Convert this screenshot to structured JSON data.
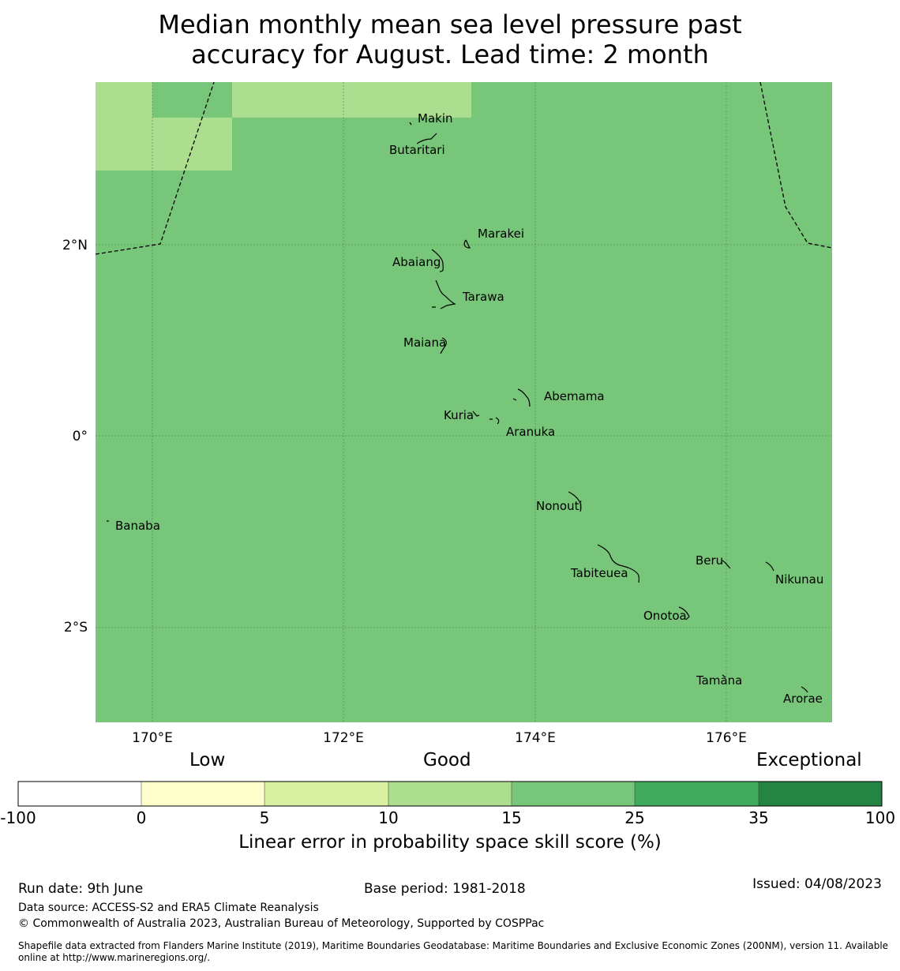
{
  "title": {
    "line1": "Median monthly mean sea level pressure past",
    "line2": "accuracy for August. Lead time: 2 month"
  },
  "map": {
    "lat_labels": [
      "2°N",
      "0°",
      "2°S"
    ],
    "lon_labels": [
      "170°E",
      "172°E",
      "174°E",
      "176°E"
    ],
    "islands": [
      "Makin",
      "Butaritari",
      "Marakei",
      "Abaiang",
      "Tarawa",
      "Maiana",
      "Abemama",
      "Kuria",
      "Aranuka",
      "Nonouti",
      "Banaba",
      "Tabiteuea",
      "Beru",
      "Nikunau",
      "Onotoa",
      "Tamana",
      "Arorae"
    ],
    "colors": {
      "background_category": "#78c679",
      "light_category": "#addd8e",
      "boundary_line": "#000000"
    }
  },
  "colorbar": {
    "categories": [
      "Low",
      "Good",
      "Exceptional"
    ],
    "ticks": [
      "-100",
      "0",
      "5",
      "10",
      "15",
      "25",
      "35",
      "100"
    ],
    "colors": [
      "#ffffff",
      "#ffffcc",
      "#d9f0a3",
      "#addd8e",
      "#78c679",
      "#41ab5d",
      "#238443"
    ],
    "label": "Linear error in probability space skill score (%)"
  },
  "footer": {
    "run_date": "Run date: 9th June",
    "base_period": "Base period: 1981-2018",
    "issued": "Issued: 04/08/2023",
    "data_source": "Data source: ACCESS-S2 and ERA5 Climate Reanalysis",
    "copyright": "© Commonwealth of Australia 2023, Australian Bureau of Meteorology, Supported by COSPPac",
    "shapefile": "Shapefile data extracted from Flanders Marine Institute (2019), Maritime Boundaries Geodatabase: Maritime Boundaries and Exclusive Economic Zones (200NM), version 11. Available online at http://www.marineregions.org/."
  }
}
